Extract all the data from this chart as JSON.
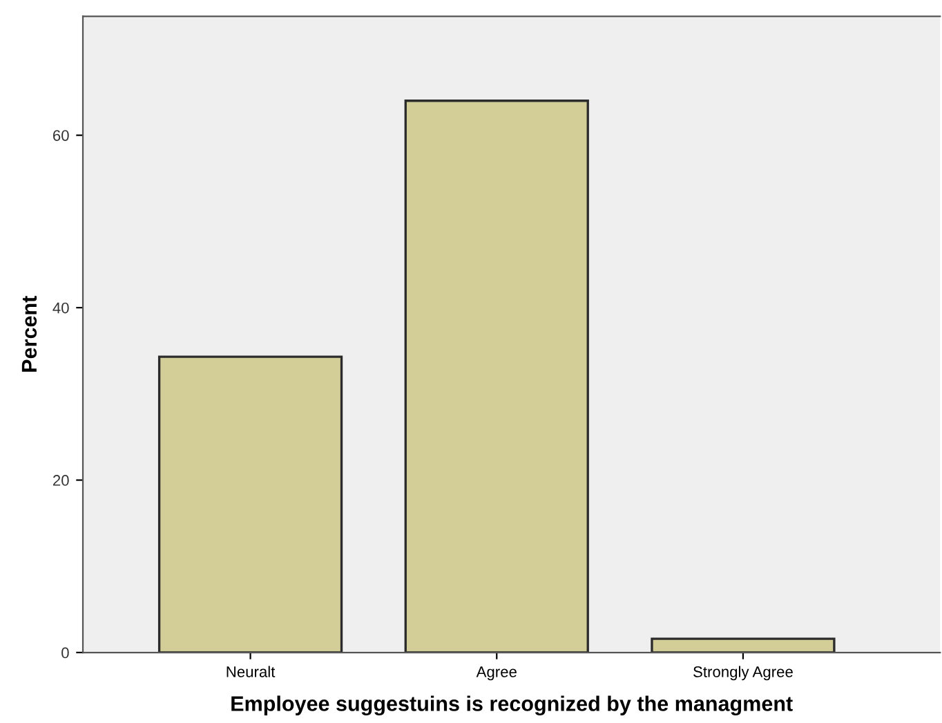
{
  "chart_data": {
    "type": "bar",
    "xlabel": "Employee suggestuins is recognized by the managment",
    "ylabel": "Percent",
    "categories": [
      "Neuralt",
      "Agree",
      "Strongly Agree"
    ],
    "values": [
      34.3,
      64.0,
      1.6
    ],
    "color": "#d3ce97",
    "ylim": [
      0,
      73.8
    ],
    "yticks": [
      0,
      20,
      40,
      60
    ],
    "grid": false,
    "legend": false
  }
}
